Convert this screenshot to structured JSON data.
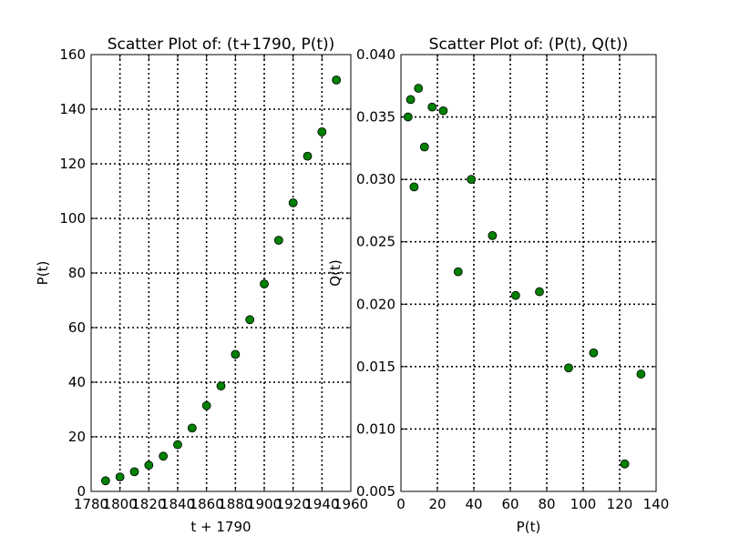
{
  "chart_data": [
    {
      "type": "scatter",
      "title": "Scatter Plot of: (t+1790, P(t))",
      "xlabel": "t + 1790",
      "ylabel": "P(t)",
      "xlim": [
        1780,
        1960
      ],
      "ylim": [
        0,
        160
      ],
      "xticks": [
        1780,
        1800,
        1820,
        1840,
        1860,
        1880,
        1900,
        1920,
        1940,
        1960
      ],
      "xticklabels": [
        "1780",
        "1800",
        "1820",
        "1840",
        "1860",
        "1880",
        "1900",
        "1920",
        "1940",
        "1960"
      ],
      "yticks": [
        0,
        20,
        40,
        60,
        80,
        100,
        120,
        140,
        160
      ],
      "yticklabels": [
        "0",
        "20",
        "40",
        "60",
        "80",
        "100",
        "120",
        "140",
        "160"
      ],
      "grid": true,
      "marker_color": "#008000",
      "x": [
        1790,
        1800,
        1810,
        1820,
        1830,
        1840,
        1850,
        1860,
        1870,
        1880,
        1890,
        1900,
        1910,
        1920,
        1930,
        1940,
        1950
      ],
      "y": [
        3.9,
        5.3,
        7.2,
        9.6,
        12.9,
        17.1,
        23.2,
        31.4,
        38.6,
        50.2,
        62.9,
        76.0,
        92.0,
        105.7,
        122.8,
        131.7,
        150.7
      ]
    },
    {
      "type": "scatter",
      "title": "Scatter Plot of: (P(t), Q(t))",
      "xlabel": "P(t)",
      "ylabel": "Q(t)",
      "xlim": [
        0,
        140
      ],
      "ylim": [
        0.005,
        0.04
      ],
      "xticks": [
        0,
        20,
        40,
        60,
        80,
        100,
        120,
        140
      ],
      "xticklabels": [
        "0",
        "20",
        "40",
        "60",
        "80",
        "100",
        "120",
        "140"
      ],
      "yticks": [
        0.005,
        0.01,
        0.015,
        0.02,
        0.025,
        0.03,
        0.035,
        0.04
      ],
      "yticklabels": [
        "0.005",
        "0.010",
        "0.015",
        "0.020",
        "0.025",
        "0.030",
        "0.035",
        "0.040"
      ],
      "grid": true,
      "marker_color": "#008000",
      "x": [
        3.9,
        5.3,
        7.2,
        9.6,
        12.9,
        17.1,
        23.2,
        31.4,
        38.6,
        50.2,
        62.9,
        76.0,
        92.0,
        105.7,
        122.8,
        131.7
      ],
      "y": [
        0.035,
        0.0364,
        0.0294,
        0.0373,
        0.0326,
        0.0358,
        0.0355,
        0.0226,
        0.03,
        0.0255,
        0.0207,
        0.021,
        0.0149,
        0.0161,
        0.0072,
        0.0144
      ]
    }
  ]
}
